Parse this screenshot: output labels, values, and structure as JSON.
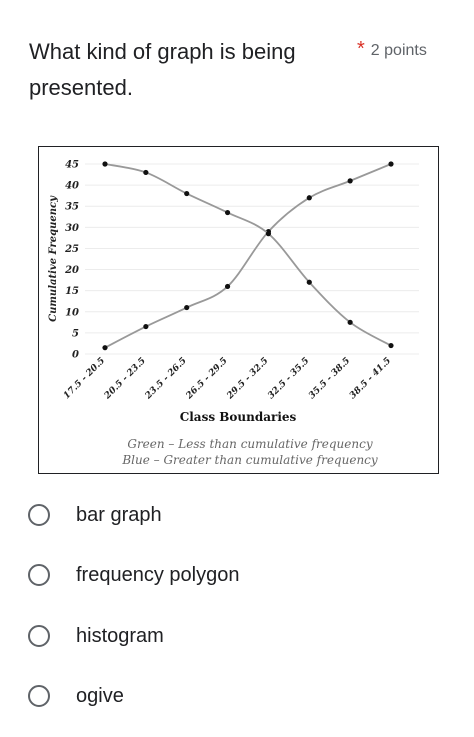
{
  "question": {
    "text": "What kind of graph is being presented.",
    "required_marker": "*",
    "points": "2 points"
  },
  "chart_data": {
    "type": "line",
    "ylabel": "Cumulative Frequency",
    "xlabel": "Class Boundaries",
    "categories": [
      "17.5 - 20.5",
      "20.5 - 23.5",
      "23.5 - 26.5",
      "26.5 - 29.5",
      "29.5 - 32.5",
      "32.5 - 35.5",
      "35.5 - 38.5",
      "38.5 - 41.5"
    ],
    "yticks": [
      0,
      5,
      10,
      15,
      20,
      25,
      30,
      35,
      40,
      45
    ],
    "ylim": [
      0,
      45
    ],
    "grid": true,
    "series": [
      {
        "values": [
          1.5,
          6.5,
          11,
          16,
          29,
          37,
          41,
          45
        ]
      },
      {
        "values": [
          45,
          43,
          38,
          33.5,
          28.5,
          17,
          7.5,
          2
        ]
      }
    ],
    "legend_lines": [
      "Green – Less than cumulative frequency",
      "Blue – Greater than cumulative frequency"
    ],
    "line_color": "#999999",
    "marker_color": "#111111"
  },
  "options": [
    {
      "label": "bar graph"
    },
    {
      "label": "frequency polygon"
    },
    {
      "label": "histogram"
    },
    {
      "label": "ogive"
    }
  ]
}
